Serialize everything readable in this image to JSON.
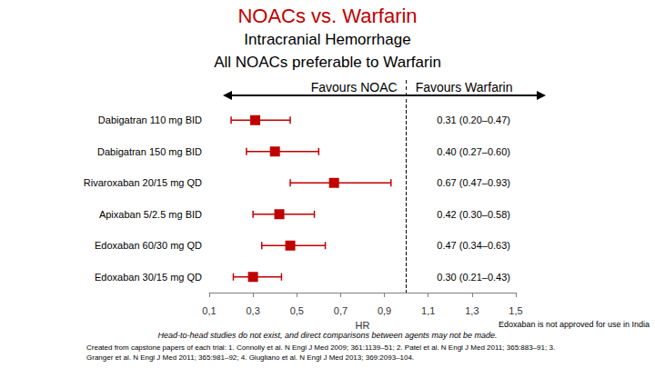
{
  "chart_data": {
    "type": "forest",
    "title": "NOACs vs. Warfarin",
    "subtitle": [
      "Intracranial Hemorrhage",
      "All NOACs preferable to Warfarin"
    ],
    "annotations": [
      "Favours NOAC",
      "Favours Warfarin"
    ],
    "x_label": "HR",
    "categories": [
      "Dabigatran 110 mg BID",
      "Dabigatran 150 mg BID",
      "Rivaroxaban 20/15 mg QD",
      "Apixaban 5/2.5 mg BID",
      "Edoxaban 60/30 mg QD",
      "Edoxaban 30/15 mg QD"
    ],
    "values": [
      0.31,
      0.4,
      0.67,
      0.42,
      0.47,
      0.3
    ],
    "lower": [
      0.2,
      0.27,
      0.47,
      0.3,
      0.34,
      0.21
    ],
    "upper": [
      0.47,
      0.6,
      0.93,
      0.58,
      0.63,
      0.43
    ],
    "value_labels": [
      "0.31 (0.20–0.47)",
      "0.40 (0.27–0.60)",
      "0.67 (0.47–0.93)",
      "0.42 (0.30–0.58)",
      "0.47 (0.34–0.63)",
      "0.30 (0.21–0.43)"
    ],
    "reference_line": 1,
    "color": "#c00000",
    "marker": "square",
    "xlim": [
      0.1,
      1.5
    ],
    "xticks": [
      {
        "value": 0.1,
        "label": "0,1"
      },
      {
        "value": 0.3,
        "label": "0,3"
      },
      {
        "value": 0.5,
        "label": "0,5"
      },
      {
        "value": 0.7,
        "label": "0,7"
      },
      {
        "value": 0.9,
        "label": "0,9"
      },
      {
        "value": 1.1,
        "label": "1,1"
      },
      {
        "value": 1.3,
        "label": "1,3"
      },
      {
        "value": 1.5,
        "label": "1,5"
      }
    ],
    "grid": false,
    "data_labels": true,
    "notes": [
      "Edoxaban is not approved for use in India",
      "Head-to-head studies do not exist, and direct comparisons between agents may not be made.",
      "Created from capstone papers of each trial: 1. Connolly et al. N Engl J Med 2009; 361:1139–51; 2. Patel et al. N Engl J Med 2011; 365:883–91; 3. Granger et al. N Engl J Med 2011; 365:981–92; 4. Giugliano et al. N Engl J Med 2013; 369:2093–104."
    ]
  }
}
